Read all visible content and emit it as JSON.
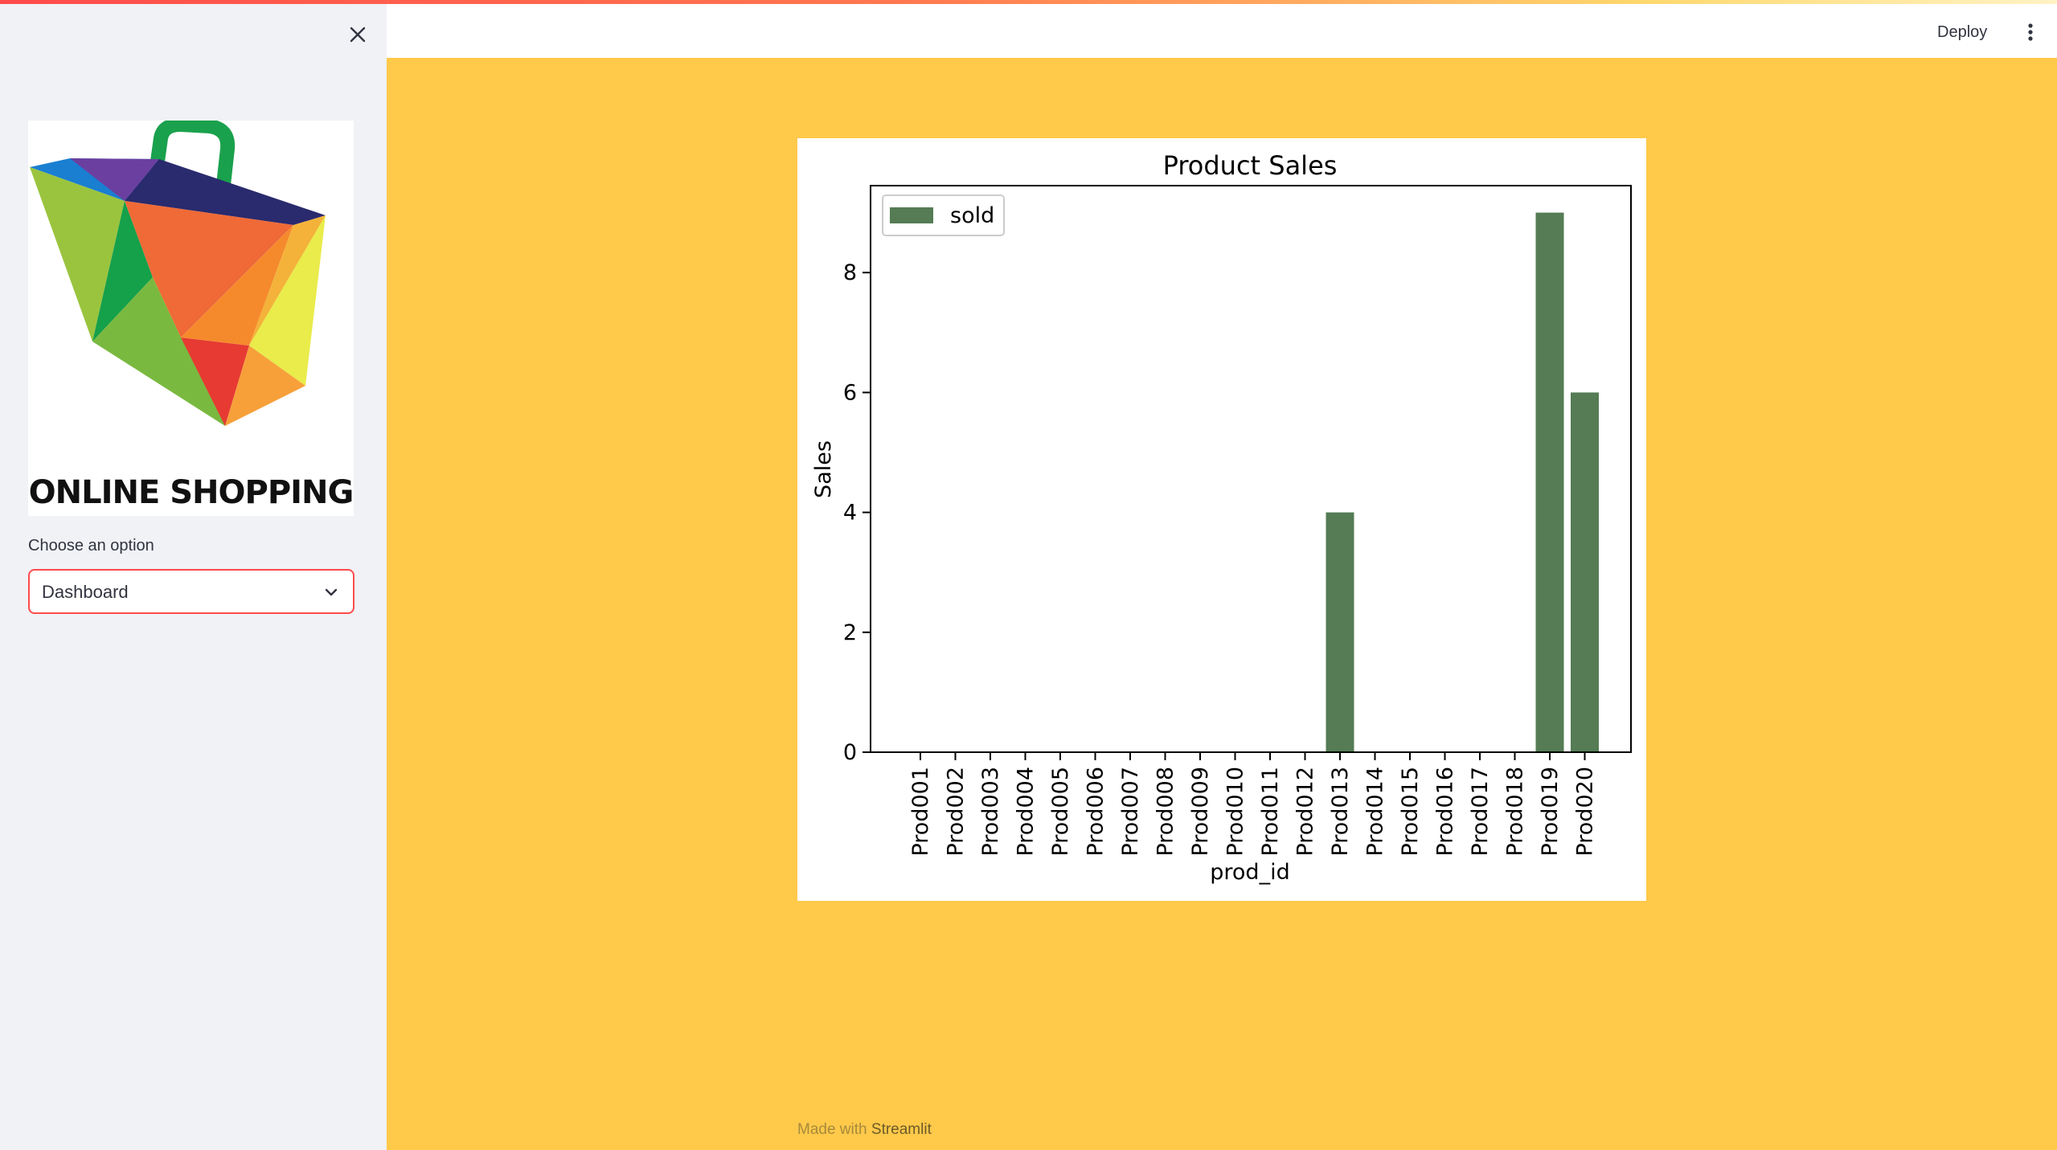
{
  "sidebar": {
    "logo_text": "ONLINE SHOPPING",
    "select_label": "Choose an option",
    "select_value": "Dashboard"
  },
  "header": {
    "deploy_label": "Deploy"
  },
  "footer": {
    "made_with": "Made with",
    "brand": "Streamlit"
  },
  "icons": {
    "close": "close-icon",
    "chevron": "chevron-down-icon",
    "menu": "kebab-menu-icon"
  },
  "colors": {
    "accent": "#ff4b4b",
    "background": "#ffc94a",
    "sidebar": "#f0f2f6",
    "bar": "#557c55"
  },
  "chart_data": {
    "type": "bar",
    "title": "Product Sales",
    "xlabel": "prod_id",
    "ylabel": "Sales",
    "categories": [
      "Prod001",
      "Prod002",
      "Prod003",
      "Prod004",
      "Prod005",
      "Prod006",
      "Prod007",
      "Prod008",
      "Prod009",
      "Prod010",
      "Prod011",
      "Prod012",
      "Prod013",
      "Prod014",
      "Prod015",
      "Prod016",
      "Prod017",
      "Prod018",
      "Prod019",
      "Prod020"
    ],
    "series": [
      {
        "name": "sold",
        "color": "#557c55",
        "values": [
          0,
          0,
          0,
          0,
          0,
          0,
          0,
          0,
          0,
          0,
          0,
          0,
          4,
          0,
          0,
          0,
          0,
          0,
          9,
          6
        ]
      }
    ],
    "ylim": [
      0,
      9.45
    ],
    "yticks": [
      0,
      2,
      4,
      6,
      8
    ],
    "legend_position": "top-left",
    "grid": false
  }
}
